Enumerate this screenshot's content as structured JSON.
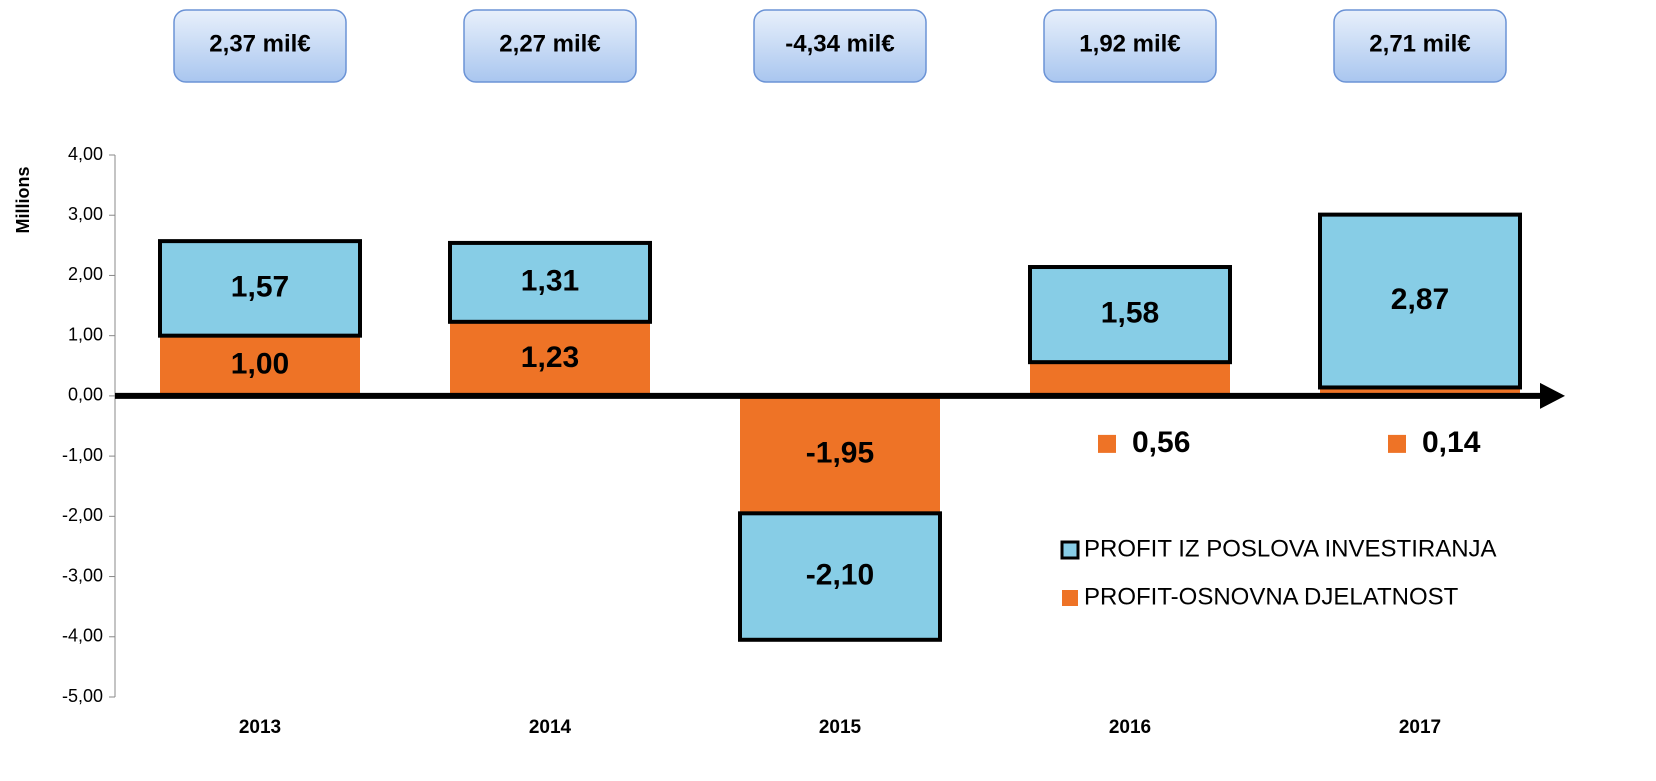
{
  "chart_data": {
    "type": "bar",
    "stacked": true,
    "y_label": "Millions",
    "categories": [
      "2013",
      "2014",
      "2015",
      "2016",
      "2017"
    ],
    "annotations": [
      "2,37 mil€",
      "2,27 mil€",
      "-4,34 mil€",
      "1,92 mil€",
      "2,71 mil€"
    ],
    "series": [
      {
        "name": "PROFIT-OSNOVNA DJELATNOST",
        "color": "#ee7326",
        "values": [
          1.0,
          1.23,
          -1.95,
          0.56,
          0.14
        ],
        "value_labels": [
          "1,00",
          "1,23",
          "-1,95",
          "0,56",
          "0,14"
        ]
      },
      {
        "name": "PROFIT IZ POSLOVA INVESTIRANJA",
        "color": "#87cde6",
        "values": [
          1.57,
          1.31,
          -2.1,
          1.58,
          2.87
        ],
        "value_labels": [
          "1,57",
          "1,31",
          "-2,10",
          "1,58",
          "2,87"
        ]
      }
    ],
    "ylim": [
      -5,
      4
    ],
    "yticks": [
      {
        "value": -5,
        "label": "-5,00"
      },
      {
        "value": -4,
        "label": "-4,00"
      },
      {
        "value": -3,
        "label": "-3,00"
      },
      {
        "value": -2,
        "label": "-2,00"
      },
      {
        "value": -1,
        "label": "-1,00"
      },
      {
        "value": 0,
        "label": "0,00"
      },
      {
        "value": 1,
        "label": "1,00"
      },
      {
        "value": 2,
        "label": "2,00"
      },
      {
        "value": 3,
        "label": "3,00"
      },
      {
        "value": 4,
        "label": "4,00"
      }
    ],
    "legend": "lower right"
  }
}
